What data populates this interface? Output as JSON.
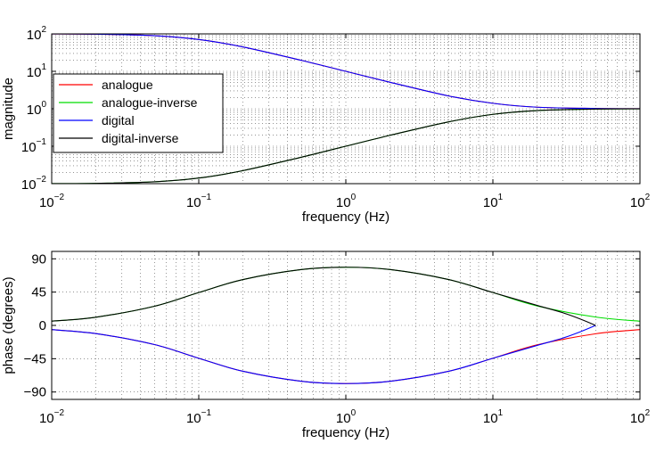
{
  "chart_data": [
    {
      "type": "line",
      "xscale": "log",
      "yscale": "log",
      "xlabel": "frequency (Hz)",
      "ylabel": "magnitude",
      "xlim": [
        0.01,
        100
      ],
      "ylim": [
        0.01,
        100
      ],
      "xticks": [
        {
          "base": "10",
          "exp": "−2"
        },
        {
          "base": "10",
          "exp": "−1"
        },
        {
          "base": "10",
          "exp": "0"
        },
        {
          "base": "10",
          "exp": "1"
        },
        {
          "base": "10",
          "exp": "2"
        }
      ],
      "yticks": [
        {
          "base": "10",
          "exp": "−2"
        },
        {
          "base": "10",
          "exp": "−1"
        },
        {
          "base": "10",
          "exp": "0"
        },
        {
          "base": "10",
          "exp": "1"
        },
        {
          "base": "10",
          "exp": "2"
        }
      ],
      "grid": true,
      "legend_position": "left",
      "x": [
        0.01,
        0.02,
        0.05,
        0.1,
        0.2,
        0.5,
        1,
        2,
        5,
        10,
        20,
        50,
        100
      ],
      "series": [
        {
          "name": "analogue",
          "color": "#ff0000",
          "values": [
            99.5,
            98.1,
            89.5,
            70.8,
            44.8,
            19.6,
            10.0,
            5.1,
            2.2,
            1.4,
            1.1,
            1.02,
            1.005
          ]
        },
        {
          "name": "analogue-inverse",
          "color": "#00dd00",
          "values": [
            0.01005,
            0.0102,
            0.0112,
            0.0141,
            0.0223,
            0.051,
            0.1,
            0.196,
            0.447,
            0.71,
            0.894,
            0.981,
            0.995
          ]
        },
        {
          "name": "digital",
          "color": "#0000ff",
          "values": [
            99.5,
            98.1,
            89.5,
            70.8,
            44.8,
            19.6,
            10.0,
            5.1,
            2.2,
            1.4,
            1.1,
            1.02,
            1.005
          ]
        },
        {
          "name": "digital-inverse",
          "color": "#000000",
          "values": [
            0.01005,
            0.0102,
            0.0112,
            0.0141,
            0.0223,
            0.051,
            0.1,
            0.196,
            0.447,
            0.71,
            0.894,
            0.981,
            0.995
          ]
        }
      ]
    },
    {
      "type": "line",
      "xscale": "log",
      "xlabel": "frequency (Hz)",
      "ylabel": "phase (degrees)",
      "xlim": [
        0.01,
        100
      ],
      "ylim": [
        -100,
        100
      ],
      "xticks": [
        {
          "base": "10",
          "exp": "−2"
        },
        {
          "base": "10",
          "exp": "−1"
        },
        {
          "base": "10",
          "exp": "0"
        },
        {
          "base": "10",
          "exp": "1"
        },
        {
          "base": "10",
          "exp": "2"
        }
      ],
      "yticks": [
        "90",
        "45",
        "0",
        "−45",
        "−90"
      ],
      "ytick_values": [
        90,
        45,
        0,
        -45,
        -90
      ],
      "grid": true,
      "series": [
        {
          "name": "analogue",
          "color": "#ff0000",
          "x": [
            0.01,
            0.02,
            0.05,
            0.1,
            0.2,
            0.5,
            1,
            2,
            5,
            10,
            20,
            50,
            100
          ],
          "values": [
            -5.7,
            -11.1,
            -25.9,
            -44.4,
            -62.0,
            -75.5,
            -78.6,
            -75.5,
            -62.0,
            -44.4,
            -26.3,
            -11.3,
            -5.7
          ]
        },
        {
          "name": "analogue-inverse",
          "color": "#00dd00",
          "x": [
            0.01,
            0.02,
            0.05,
            0.1,
            0.2,
            0.5,
            1,
            2,
            5,
            10,
            20,
            50,
            100
          ],
          "values": [
            5.7,
            11.1,
            25.9,
            44.4,
            62.0,
            75.5,
            78.6,
            75.5,
            62.0,
            44.4,
            26.3,
            11.3,
            5.7
          ]
        },
        {
          "name": "digital",
          "color": "#0000ff",
          "x": [
            0.01,
            0.02,
            0.05,
            0.1,
            0.2,
            0.5,
            1,
            2,
            5,
            10,
            20,
            30,
            40,
            50
          ],
          "values": [
            -5.7,
            -11.1,
            -25.9,
            -44.4,
            -62.0,
            -75.5,
            -78.6,
            -75.5,
            -62.0,
            -44.4,
            -27.0,
            -17.0,
            -8.0,
            0
          ]
        },
        {
          "name": "digital-inverse",
          "color": "#000000",
          "x": [
            0.01,
            0.02,
            0.05,
            0.1,
            0.2,
            0.5,
            1,
            2,
            5,
            10,
            20,
            30,
            40,
            50
          ],
          "values": [
            5.7,
            11.1,
            25.9,
            44.4,
            62.0,
            75.5,
            78.6,
            75.5,
            62.0,
            44.4,
            27.0,
            17.0,
            8.0,
            0
          ]
        }
      ]
    }
  ]
}
